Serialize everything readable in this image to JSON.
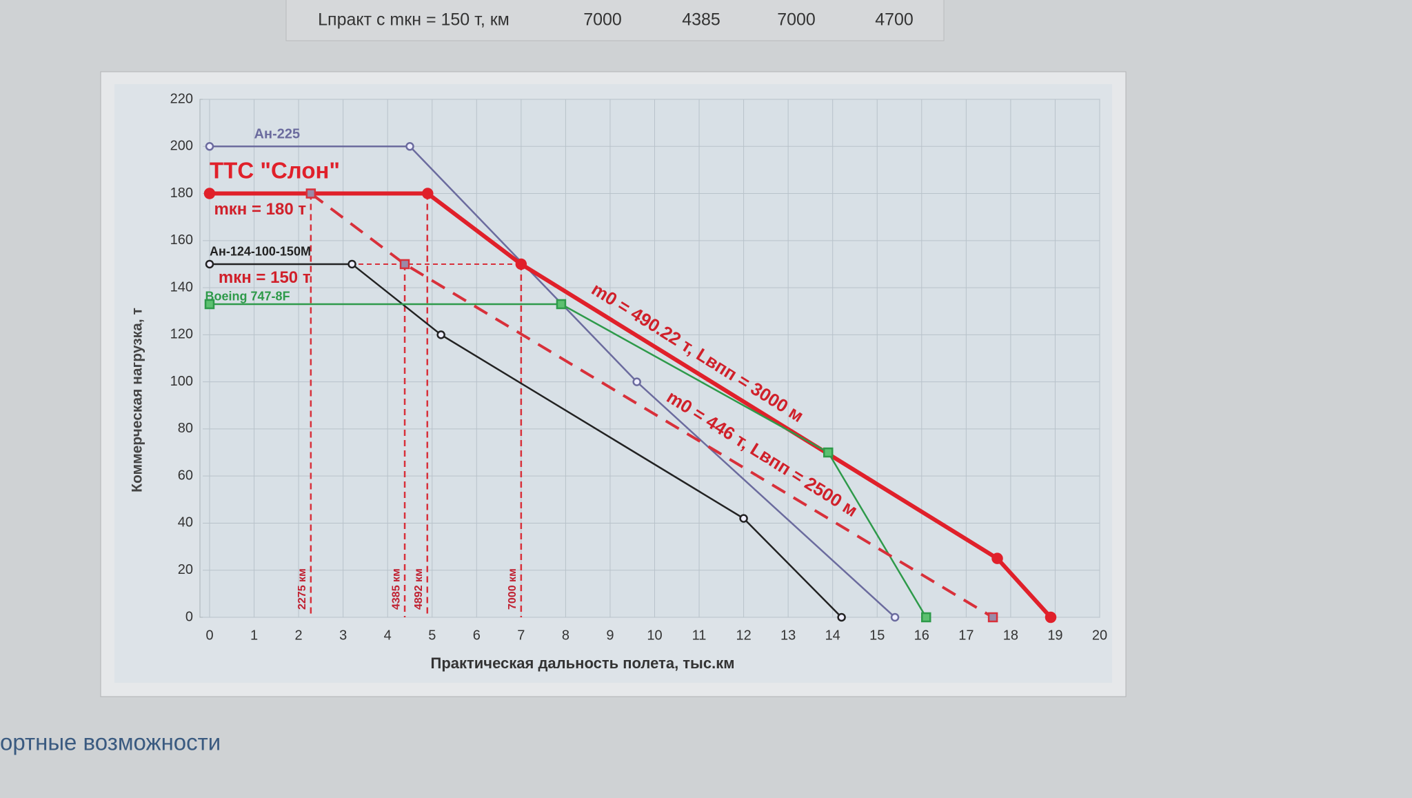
{
  "header": {
    "cells": [
      "Lпракт с mкн = 150 т, км",
      "7000",
      "4385",
      "7000",
      "4700"
    ]
  },
  "footer": {
    "heading": "ортные возможности"
  },
  "chart_data": {
    "type": "line",
    "y_label": "Коммерческая нагрузка, т",
    "x_label": "Практическая дальность полета, тыс.км",
    "xlim": [
      0,
      20
    ],
    "xticks": [
      0,
      1,
      2,
      3,
      4,
      5,
      6,
      7,
      8,
      9,
      10,
      11,
      12,
      13,
      14,
      15,
      16,
      17,
      18,
      19,
      20
    ],
    "ylim": [
      0,
      220
    ],
    "yticks": [
      0,
      20,
      40,
      60,
      80,
      100,
      120,
      140,
      160,
      180,
      200,
      220
    ],
    "grid": true,
    "series": [
      {
        "name": "Ан-225",
        "color": "#6b6b9e",
        "x": [
          0,
          4.5,
          9.6,
          15.4
        ],
        "values": [
          200,
          200,
          100,
          0
        ]
      },
      {
        "name": "ТТС \"Слон\"",
        "color": "#e0202a",
        "x": [
          0,
          4.9,
          7,
          17.7,
          18.9
        ],
        "values": [
          180,
          180,
          150,
          25,
          0
        ]
      },
      {
        "name": "Ан-124-100-150М",
        "color": "#222222",
        "x": [
          0,
          3.2,
          5.2,
          12,
          14.2
        ],
        "values": [
          150,
          150,
          120,
          42,
          0
        ]
      },
      {
        "name": "Boeing 747-8F",
        "color": "#2e9a4a",
        "x": [
          0,
          7.9,
          13.9,
          16.1
        ],
        "values": [
          133,
          133,
          70,
          0
        ]
      },
      {
        "color": "#d8303a",
        "dashed": true,
        "x": [
          2.275,
          4.385,
          17.6
        ],
        "values": [
          180,
          150,
          0
        ]
      }
    ],
    "vlines": [
      {
        "value": 2.275,
        "label": "2275 км",
        "y": 180
      },
      {
        "value": 4.385,
        "label": "4385 км",
        "y": 150
      },
      {
        "value": 4.892,
        "label": "4892 км",
        "y": 180
      },
      {
        "value": 7,
        "label": "7000 км",
        "y": 150
      }
    ],
    "hlines": [
      {
        "value": 150,
        "xmax": 7
      }
    ],
    "annotations": [
      "mкн = 180 т",
      "mкн = 150 т",
      "m0 = 490.22 т, Lвпп = 3000 м",
      "m0 = 446 т, Lвпп = 2500 м"
    ]
  }
}
